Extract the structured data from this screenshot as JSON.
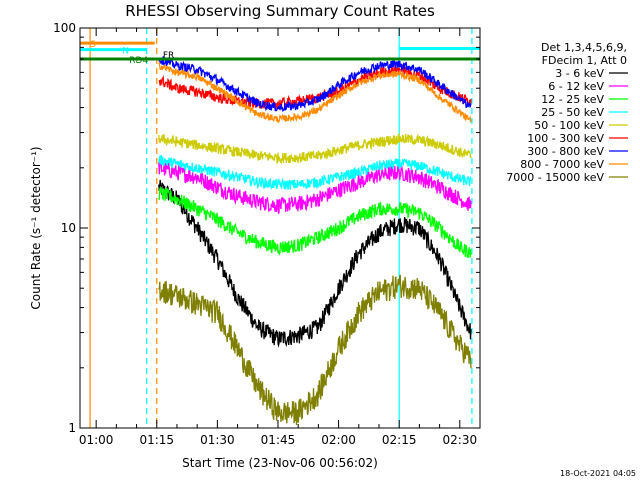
{
  "chart_data": {
    "type": "line",
    "title": "RHESSI Observing Summary Count Rates",
    "xlabel": "Start Time (23-Nov-06 00:56:02)",
    "ylabel": "Count Rate (s⁻¹ detector⁻¹)",
    "yscale": "log",
    "xlim_min": [
      56.0,
      155.0
    ],
    "ylim": [
      1,
      100
    ],
    "y_ticks": [
      "1",
      "10",
      "100"
    ],
    "x_ticks": [
      {
        "label": "01:00",
        "t": 60
      },
      {
        "label": "01:15",
        "t": 75
      },
      {
        "label": "01:30",
        "t": 90
      },
      {
        "label": "01:45",
        "t": 105
      },
      {
        "label": "02:00",
        "t": 120
      },
      {
        "label": "02:15",
        "t": 135
      },
      {
        "label": "02:30",
        "t": 150
      }
    ],
    "legend_header": [
      "Det 1,3,4,5,6,9,",
      "FDecim 1, Att 0"
    ],
    "series": [
      {
        "name": "3 - 6 keV",
        "color": "#000000"
      },
      {
        "name": "6 - 12 keV",
        "color": "#ff00ff"
      },
      {
        "name": "12 - 25 keV",
        "color": "#00ff00"
      },
      {
        "name": "25 - 50 keV",
        "color": "#00ffff"
      },
      {
        "name": "50 - 100 keV",
        "color": "#cccc00"
      },
      {
        "name": "100 - 300 keV",
        "color": "#ff0000"
      },
      {
        "name": "300 - 800 keV",
        "color": "#0000ff"
      },
      {
        "name": "800 - 7000 keV",
        "color": "#ff8c00"
      },
      {
        "name": "7000 - 15000 keV",
        "color": "#808000"
      }
    ],
    "series_samples": {
      "t": [
        75.5,
        80,
        85,
        90,
        95,
        100,
        105,
        110,
        115,
        120,
        125,
        130,
        135,
        140,
        145,
        150,
        152.8
      ],
      "3 - 6 keV": [
        16,
        14,
        10,
        7,
        4.5,
        3.2,
        2.8,
        2.9,
        3.2,
        5,
        7.5,
        9.5,
        10.5,
        10,
        7,
        4,
        3
      ],
      "6 - 12 keV": [
        20,
        19,
        18,
        16,
        14.5,
        13.5,
        13,
        13.2,
        14,
        15.5,
        17,
        18.5,
        19,
        18,
        16,
        14,
        13
      ],
      "12 - 25 keV": [
        15,
        14,
        12.5,
        11,
        9.5,
        8.5,
        8,
        8.2,
        9,
        10,
        11.5,
        12.5,
        12.5,
        12,
        10,
        8,
        7.5
      ],
      "25 - 50 keV": [
        22,
        21,
        20,
        19,
        18,
        17,
        16.5,
        16.5,
        17,
        18,
        19,
        20.5,
        21,
        20.5,
        19,
        17.5,
        17
      ],
      "50 - 100 keV": [
        28,
        27,
        26,
        25,
        24,
        23,
        22.5,
        22.5,
        23,
        24.5,
        26,
        27,
        28,
        27.5,
        26,
        24,
        23
      ],
      "100 - 300 keV": [
        55,
        50,
        48,
        45,
        43,
        42,
        42,
        43,
        45,
        48,
        55,
        60,
        62,
        58,
        50,
        45,
        43
      ],
      "300 - 800 keV": [
        70,
        65,
        62,
        55,
        48,
        42,
        40,
        41,
        44,
        52,
        60,
        65,
        66,
        62,
        52,
        44,
        40
      ],
      "800 - 7000 keV": [
        65,
        60,
        57,
        50,
        43,
        37,
        35,
        36,
        39,
        46,
        53,
        58,
        59,
        55,
        45,
        38,
        34
      ],
      "7000 - 15000 keV": [
        5,
        4.6,
        4.2,
        3.8,
        2.5,
        1.6,
        1.2,
        1.2,
        1.5,
        2.5,
        3.8,
        4.8,
        5.2,
        5,
        3.8,
        2.6,
        2.2
      ]
    },
    "flag_bars": [
      {
        "label": "S",
        "color": "#ff8c00",
        "t_start": 56.0,
        "t_end": 74.5,
        "level": 84
      },
      {
        "label": "N",
        "color": "#00ffff",
        "t_start": 56.0,
        "t_end": 72.5,
        "level": 78
      },
      {
        "label": "RD4",
        "color": "#008000",
        "t_start": 56.0,
        "t_end": 155.0,
        "level": 70
      },
      {
        "label": "",
        "color": "#00ffff",
        "t_start": 135.0,
        "t_end": 155.0,
        "level": 79
      }
    ],
    "flag_text": "FR",
    "markers": [
      {
        "t": 58.5,
        "color": "#ff8c00",
        "style": "solid"
      },
      {
        "t": 72.5,
        "color": "#00ffff",
        "style": "dashed"
      },
      {
        "t": 75.0,
        "color": "#ff8c00",
        "style": "dashed"
      },
      {
        "t": 135.0,
        "color": "#00ffff",
        "style": "solid"
      },
      {
        "t": 153.0,
        "color": "#00ffff",
        "style": "dashed"
      }
    ],
    "timestamp": "18-Oct-2021 04:05"
  }
}
